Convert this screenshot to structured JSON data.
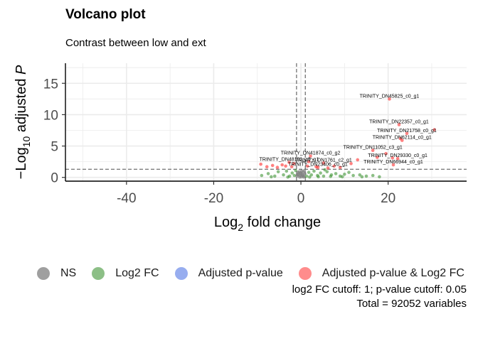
{
  "chart_data": {
    "type": "scatter",
    "title": "Volcano plot",
    "subtitle": "Contrast between low and ext",
    "xlabel_main": "Log",
    "xlabel_sub": "2",
    "xlabel_rest": " fold change",
    "ylabel_prefix": "−Log",
    "ylabel_sub": "10",
    "ylabel_rest": " adjusted ",
    "ylabel_italic": "P",
    "xlim": [
      -54,
      38
    ],
    "ylim": [
      -0.6,
      18.2
    ],
    "xticks": [
      -40,
      -20,
      0,
      20
    ],
    "xtick_labels": [
      "-40",
      "-20",
      "0",
      "20"
    ],
    "yticks": [
      0,
      5,
      10,
      15
    ],
    "ytick_labels": [
      "0",
      "5",
      "10",
      "15"
    ],
    "grid": true,
    "fc_cutoff": 1,
    "pvalue_cutoff": 0.05,
    "fc_cutoff_lines": [
      -1,
      1
    ],
    "p_cutoff_line": 1.3,
    "legend_position": "bottom",
    "legend": [
      {
        "label": "NS",
        "color": "#7f7f7f"
      },
      {
        "label": "Log2 FC",
        "color": "#2e8b22"
      },
      {
        "label": "Adjusted p-value",
        "color": "#4169e1"
      },
      {
        "label": "Adjusted p-value & Log2 FC",
        "color": "#ff1a1a"
      }
    ],
    "caption_line1": "log2 FC cutoff: 1; p-value cutoff: 0.05",
    "caption_line2": "Total = 92052 variables",
    "series": [
      {
        "name": "NS",
        "color": "#7f7f7f",
        "points": [
          [
            -0.9,
            0.2
          ],
          [
            -0.6,
            0.5
          ],
          [
            -0.4,
            0.9
          ],
          [
            -0.2,
            0.3
          ],
          [
            0.0,
            0.7
          ],
          [
            0.1,
            0.1
          ],
          [
            0.3,
            0.4
          ],
          [
            0.5,
            0.8
          ],
          [
            0.7,
            0.2
          ],
          [
            0.9,
            0.6
          ],
          [
            -0.7,
            0.8
          ],
          [
            0.2,
            1.0
          ],
          [
            -0.3,
            0.05
          ],
          [
            0.6,
            0.05
          ],
          [
            -0.8,
            0.4
          ],
          [
            0.8,
            1.1
          ],
          [
            0.4,
            0.3
          ],
          [
            -0.1,
            0.6
          ]
        ]
      },
      {
        "name": "Log2 FC",
        "color": "#2e8b22",
        "points": [
          [
            -9.0,
            0.3
          ],
          [
            -7.5,
            0.6
          ],
          [
            -6.0,
            0.2
          ],
          [
            -5.2,
            0.9
          ],
          [
            -4.0,
            0.4
          ],
          [
            -3.3,
            1.0
          ],
          [
            -2.6,
            0.2
          ],
          [
            -2.0,
            0.7
          ],
          [
            -1.5,
            0.3
          ],
          [
            -1.2,
            1.1
          ],
          [
            1.3,
            0.2
          ],
          [
            1.8,
            0.8
          ],
          [
            2.4,
            0.4
          ],
          [
            3.0,
            1.0
          ],
          [
            3.8,
            0.3
          ],
          [
            4.5,
            0.7
          ],
          [
            5.2,
            0.2
          ],
          [
            6.0,
            0.9
          ],
          [
            7.0,
            0.4
          ],
          [
            8.0,
            0.6
          ],
          [
            9.0,
            0.2
          ],
          [
            10.0,
            0.5
          ],
          [
            11.0,
            0.8
          ],
          [
            12.0,
            0.3
          ],
          [
            13.5,
            0.4
          ],
          [
            15.0,
            0.2
          ],
          [
            16.5,
            0.3
          ],
          [
            18.0,
            0.1
          ],
          [
            -3.0,
            0.05
          ],
          [
            2.0,
            0.05
          ],
          [
            4.0,
            0.1
          ],
          [
            -6.8,
            0.1
          ],
          [
            6.8,
            0.15
          ],
          [
            9.5,
            0.1
          ],
          [
            14.0,
            0.1
          ],
          [
            5.5,
            1.2
          ]
        ]
      },
      {
        "name": "Adjusted p-value & Log2 FC",
        "color": "#ff1a1a",
        "points": [
          [
            -9.2,
            2.1
          ],
          [
            -7.8,
            1.7
          ],
          [
            -6.5,
            1.9
          ],
          [
            -5.4,
            1.6
          ],
          [
            -4.3,
            2.0
          ],
          [
            -3.5,
            1.8
          ],
          [
            -2.7,
            2.4
          ],
          [
            -2.1,
            1.7
          ],
          [
            -1.6,
            2.2
          ],
          [
            1.5,
            1.8
          ],
          [
            1.8,
            2.5
          ],
          [
            2.2,
            3.4
          ],
          [
            3.5,
            1.7
          ],
          [
            3.9,
            1.6
          ],
          [
            5.2,
            2.3
          ],
          [
            6.2,
            1.5
          ],
          [
            7.6,
            1.8
          ],
          [
            9.0,
            1.6
          ],
          [
            20.3,
            12.5
          ],
          [
            22.5,
            8.4
          ],
          [
            24.3,
            7.0
          ],
          [
            30.6,
            7.6
          ],
          [
            22.8,
            6.2
          ],
          [
            23.2,
            5.9
          ],
          [
            16.5,
            4.3
          ],
          [
            19.5,
            3.8
          ],
          [
            17.5,
            3.2
          ],
          [
            21.0,
            3.1
          ],
          [
            22.2,
            3.0
          ],
          [
            21.2,
            2.0
          ],
          [
            13.0,
            2.8
          ],
          [
            11.5,
            2.2
          ]
        ]
      }
    ],
    "annotations": [
      {
        "text": "TRINITY_DN45825_c0_g1",
        "x": 20.3,
        "y": 12.5
      },
      {
        "text": "TRINITY_DN22357_c0_g1",
        "x": 22.5,
        "y": 8.4
      },
      {
        "text": "TRINITY_DN21758_c0_g1",
        "x": 24.3,
        "y": 7.0
      },
      {
        "text": "TRINITY_DN62114_c0_g1",
        "x": 23.2,
        "y": 5.9
      },
      {
        "text": "TRINITY_DN11052_c3_g1",
        "x": 16.5,
        "y": 4.3
      },
      {
        "text": "TRINITY_DN29330_c0_g1",
        "x": 22.2,
        "y": 3.0
      },
      {
        "text": "TRINITY_DN66944_c0_g1",
        "x": 21.2,
        "y": 2.0
      },
      {
        "text": "TRINITY_DN1761_c2_g1",
        "x": 5.2,
        "y": 2.3
      },
      {
        "text": "TRINITY_DN23406_c0_g1",
        "x": 3.9,
        "y": 1.6
      },
      {
        "text": "TRINITY_DN41874_c0_g2",
        "x": 2.2,
        "y": 3.4
      },
      {
        "text": "TRINITY_DN48101_c0_g1",
        "x": -2.7,
        "y": 2.4
      }
    ]
  }
}
